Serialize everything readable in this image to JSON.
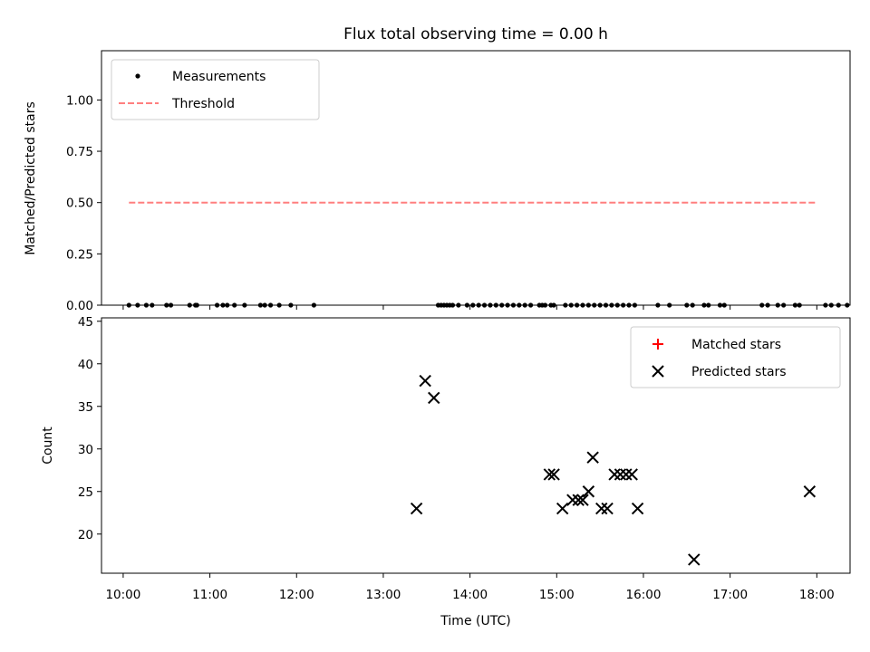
{
  "chart_data": [
    {
      "type": "scatter",
      "title": "Flux total observing time = 0.00 h",
      "xlabel": "",
      "ylabel": "Matched/Predicted stars",
      "xlim": [
        "09:45",
        "18:23"
      ],
      "ylim": [
        0,
        1.24
      ],
      "yticks": [
        0,
        0.25,
        0.5,
        0.75,
        1.0
      ],
      "ytick_labels": [
        "0.00",
        "0.25",
        "0.50",
        "0.75",
        "1.00"
      ],
      "grid": false,
      "legend_position": "top-left",
      "series": [
        {
          "name": "Measurements",
          "kind": "scatter",
          "color": "#000000",
          "marker": "dot",
          "x": [
            "10:04",
            "10:10",
            "10:16",
            "10:20",
            "10:30",
            "10:33",
            "10:46",
            "10:50",
            "10:51",
            "11:05",
            "11:09",
            "11:12",
            "11:17",
            "11:24",
            "11:35",
            "11:38",
            "11:42",
            "11:48",
            "11:56",
            "12:12",
            "13:38",
            "13:40",
            "13:42",
            "13:44",
            "13:46",
            "13:48",
            "13:52",
            "13:58",
            "14:02",
            "14:06",
            "14:10",
            "14:14",
            "14:18",
            "14:22",
            "14:26",
            "14:30",
            "14:34",
            "14:38",
            "14:42",
            "14:48",
            "14:52",
            "14:56",
            "14:50",
            "14:58",
            "15:06",
            "15:10",
            "15:14",
            "15:18",
            "15:22",
            "15:26",
            "15:30",
            "15:34",
            "15:38",
            "15:42",
            "15:46",
            "15:50",
            "15:54",
            "16:10",
            "16:18",
            "16:30",
            "16:34",
            "16:42",
            "16:45",
            "16:53",
            "16:56",
            "17:22",
            "17:26",
            "17:33",
            "17:37",
            "17:45",
            "17:48",
            "18:06",
            "18:10",
            "18:15",
            "18:21"
          ],
          "y": [
            0.0,
            0.0,
            0.0,
            0.0,
            0.0,
            0.0,
            0.0,
            0.0,
            0.0,
            0.0,
            0.0,
            0.0,
            0.0,
            0.0,
            0.0,
            0.0,
            0.0,
            0.0,
            0.0,
            0.0,
            0.0,
            0.0,
            0.0,
            0.0,
            0.0,
            0.0,
            0.0,
            0.0,
            0.0,
            0.0,
            0.0,
            0.0,
            0.0,
            0.0,
            0.0,
            0.0,
            0.0,
            0.0,
            0.0,
            0.0,
            0.0,
            0.0,
            0.0,
            0.0,
            0.0,
            0.0,
            0.0,
            0.0,
            0.0,
            0.0,
            0.0,
            0.0,
            0.0,
            0.0,
            0.0,
            0.0,
            0.0,
            0.0,
            0.0,
            0.0,
            0.0,
            0.0,
            0.0,
            0.0,
            0.0,
            0.0,
            0.0,
            0.0,
            0.0,
            0.0,
            0.0,
            0.0,
            0.0,
            0.0,
            0.0
          ]
        },
        {
          "name": "Threshold",
          "kind": "line",
          "color": "#ff7f7f",
          "dash": true,
          "x": [
            "10:04",
            "18:00"
          ],
          "y": [
            0.5,
            0.5
          ]
        }
      ]
    },
    {
      "type": "scatter",
      "title": "",
      "xlabel": "Time (UTC)",
      "ylabel": "Count",
      "xlim": [
        "09:45",
        "18:23"
      ],
      "ylim": [
        15.4,
        45.4
      ],
      "yticks": [
        20,
        25,
        30,
        35,
        40,
        45
      ],
      "ytick_labels": [
        "20",
        "25",
        "30",
        "35",
        "40",
        "45"
      ],
      "xticks": [
        "10:00",
        "11:00",
        "12:00",
        "13:00",
        "14:00",
        "15:00",
        "16:00",
        "17:00",
        "18:00"
      ],
      "xtick_labels": [
        "10:00",
        "11:00",
        "12:00",
        "13:00",
        "14:00",
        "15:00",
        "16:00",
        "17:00",
        "18:00"
      ],
      "grid": false,
      "legend_position": "top-right",
      "series": [
        {
          "name": "Matched stars",
          "kind": "scatter",
          "color": "#ff0000",
          "marker": "plus",
          "x": [],
          "y": []
        },
        {
          "name": "Predicted stars",
          "kind": "scatter",
          "color": "#000000",
          "marker": "x",
          "x": [
            "13:23",
            "13:29",
            "13:35",
            "14:55",
            "14:58",
            "15:04",
            "15:11",
            "15:15",
            "15:18",
            "15:22",
            "15:25",
            "15:31",
            "15:35",
            "15:40",
            "15:44",
            "15:48",
            "15:52",
            "15:56",
            "16:35",
            "17:55"
          ],
          "y": [
            23,
            38,
            36,
            27,
            27,
            23,
            24,
            24,
            24,
            25,
            29,
            23,
            23,
            27,
            27,
            27,
            27,
            23,
            17,
            25
          ]
        }
      ]
    }
  ]
}
